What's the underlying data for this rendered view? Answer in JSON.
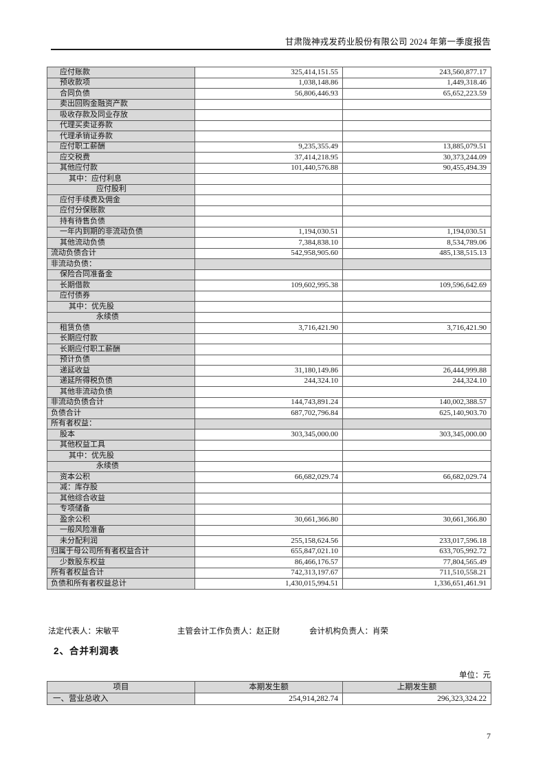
{
  "page": {
    "header_title": "甘肃陇神戎发药业股份有限公司 2024 年第一季度报告",
    "page_number": "7"
  },
  "balance_sheet": {
    "rows": [
      {
        "label": "应付账款",
        "indent": 1,
        "section": false,
        "current": "325,414,151.55",
        "prior": "243,560,877.17"
      },
      {
        "label": "预收款项",
        "indent": 1,
        "section": false,
        "current": "1,038,148.86",
        "prior": "1,449,318.46"
      },
      {
        "label": "合同负债",
        "indent": 1,
        "section": false,
        "current": "56,806,446.93",
        "prior": "65,652,223.59"
      },
      {
        "label": "卖出回购金融资产款",
        "indent": 1,
        "section": false,
        "current": null,
        "prior": null
      },
      {
        "label": "吸收存款及同业存放",
        "indent": 1,
        "section": false,
        "current": null,
        "prior": null
      },
      {
        "label": "代理买卖证券款",
        "indent": 1,
        "section": false,
        "current": null,
        "prior": null
      },
      {
        "label": "代理承销证券款",
        "indent": 1,
        "section": false,
        "current": null,
        "prior": null
      },
      {
        "label": "应付职工薪酬",
        "indent": 1,
        "section": false,
        "current": "9,235,355.49",
        "prior": "13,885,079.51"
      },
      {
        "label": "应交税费",
        "indent": 1,
        "section": false,
        "current": "37,414,218.95",
        "prior": "30,373,244.09"
      },
      {
        "label": "其他应付款",
        "indent": 1,
        "section": false,
        "current": "101,440,576.88",
        "prior": "90,455,494.39"
      },
      {
        "label": "其中：应付利息",
        "indent": 2,
        "section": false,
        "current": null,
        "prior": null
      },
      {
        "label": "应付股利",
        "indent": 3,
        "section": false,
        "current": null,
        "prior": null
      },
      {
        "label": "应付手续费及佣金",
        "indent": 1,
        "section": false,
        "current": null,
        "prior": null
      },
      {
        "label": "应付分保账款",
        "indent": 1,
        "section": false,
        "current": null,
        "prior": null
      },
      {
        "label": "持有待售负债",
        "indent": 1,
        "section": false,
        "current": null,
        "prior": null
      },
      {
        "label": "一年内到期的非流动负债",
        "indent": 1,
        "section": false,
        "current": "1,194,030.51",
        "prior": "1,194,030.51"
      },
      {
        "label": "其他流动负债",
        "indent": 1,
        "section": false,
        "current": "7,384,838.10",
        "prior": "8,534,789.06"
      },
      {
        "label": "流动负债合计",
        "indent": 0,
        "section": false,
        "current": "542,958,905.60",
        "prior": "485,138,515.13"
      },
      {
        "label": "非流动负债：",
        "indent": 0,
        "section": true,
        "current": null,
        "prior": null
      },
      {
        "label": "保险合同准备金",
        "indent": 1,
        "section": false,
        "current": null,
        "prior": null
      },
      {
        "label": "长期借款",
        "indent": 1,
        "section": false,
        "current": "109,602,995.38",
        "prior": "109,596,642.69"
      },
      {
        "label": "应付债券",
        "indent": 1,
        "section": false,
        "current": null,
        "prior": null
      },
      {
        "label": "其中：优先股",
        "indent": 2,
        "section": false,
        "current": null,
        "prior": null
      },
      {
        "label": "永续债",
        "indent": 3,
        "section": false,
        "current": null,
        "prior": null
      },
      {
        "label": "租赁负债",
        "indent": 1,
        "section": false,
        "current": "3,716,421.90",
        "prior": "3,716,421.90"
      },
      {
        "label": "长期应付款",
        "indent": 1,
        "section": false,
        "current": null,
        "prior": null
      },
      {
        "label": "长期应付职工薪酬",
        "indent": 1,
        "section": false,
        "current": null,
        "prior": null
      },
      {
        "label": "预计负债",
        "indent": 1,
        "section": false,
        "current": null,
        "prior": null
      },
      {
        "label": "递延收益",
        "indent": 1,
        "section": false,
        "current": "31,180,149.86",
        "prior": "26,444,999.88"
      },
      {
        "label": "递延所得税负债",
        "indent": 1,
        "section": false,
        "current": "244,324.10",
        "prior": "244,324.10"
      },
      {
        "label": "其他非流动负债",
        "indent": 1,
        "section": false,
        "current": null,
        "prior": null
      },
      {
        "label": "非流动负债合计",
        "indent": 0,
        "section": false,
        "current": "144,743,891.24",
        "prior": "140,002,388.57"
      },
      {
        "label": "负债合计",
        "indent": 0,
        "section": false,
        "current": "687,702,796.84",
        "prior": "625,140,903.70"
      },
      {
        "label": "所有者权益：",
        "indent": 0,
        "section": true,
        "current": null,
        "prior": null
      },
      {
        "label": "股本",
        "indent": 1,
        "section": false,
        "current": "303,345,000.00",
        "prior": "303,345,000.00"
      },
      {
        "label": "其他权益工具",
        "indent": 1,
        "section": false,
        "current": null,
        "prior": null
      },
      {
        "label": "其中：优先股",
        "indent": 2,
        "section": false,
        "current": null,
        "prior": null
      },
      {
        "label": "永续债",
        "indent": 3,
        "section": false,
        "current": null,
        "prior": null
      },
      {
        "label": "资本公积",
        "indent": 1,
        "section": false,
        "current": "66,682,029.74",
        "prior": "66,682,029.74"
      },
      {
        "label": "减：库存股",
        "indent": 1,
        "section": false,
        "current": null,
        "prior": null
      },
      {
        "label": "其他综合收益",
        "indent": 1,
        "section": false,
        "current": null,
        "prior": null
      },
      {
        "label": "专项储备",
        "indent": 1,
        "section": false,
        "current": null,
        "prior": null
      },
      {
        "label": "盈余公积",
        "indent": 1,
        "section": false,
        "current": "30,661,366.80",
        "prior": "30,661,366.80"
      },
      {
        "label": "一般风险准备",
        "indent": 1,
        "section": false,
        "current": null,
        "prior": null
      },
      {
        "label": "未分配利润",
        "indent": 1,
        "section": false,
        "current": "255,158,624.56",
        "prior": "233,017,596.18"
      },
      {
        "label": "归属于母公司所有者权益合计",
        "indent": 0,
        "section": false,
        "current": "655,847,021.10",
        "prior": "633,705,992.72"
      },
      {
        "label": "少数股东权益",
        "indent": 1,
        "section": false,
        "current": "86,466,176.57",
        "prior": "77,804,565.49"
      },
      {
        "label": "所有者权益合计",
        "indent": 0,
        "section": false,
        "current": "742,313,197.67",
        "prior": "711,510,558.21"
      },
      {
        "label": "负债和所有者权益总计",
        "indent": 0,
        "section": false,
        "current": "1,430,015,994.51",
        "prior": "1,336,651,461.91"
      }
    ],
    "signatories": {
      "legal_representative": "法定代表人：宋敏平",
      "chief_accountant": "主管会计工作负责人：赵正财",
      "accounting_department_head": "会计机构负责人：肖荣"
    }
  },
  "income_statement": {
    "heading": "2、合并利润表",
    "unit_label": "单位：元",
    "columns": [
      "项目",
      "本期发生额",
      "上期发生额"
    ],
    "rows": [
      {
        "label": "一、营业总收入",
        "indent": 0,
        "section": false,
        "current": "254,914,282.74",
        "prior": "296,323,324.22"
      }
    ]
  }
}
